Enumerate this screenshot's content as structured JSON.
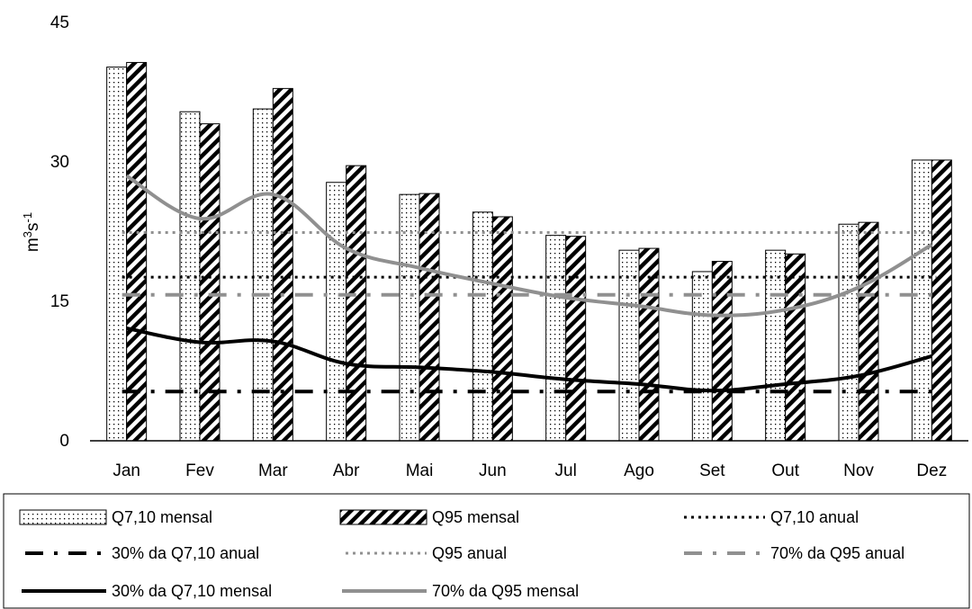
{
  "chart_data": {
    "type": "bar",
    "title": "",
    "xlabel": "",
    "ylabel": "m³s⁻¹",
    "ylabel_base": "m",
    "ylabel_sup1": "3",
    "ylabel_mid": "s",
    "ylabel_sup2": "-1",
    "ylim": [
      0,
      45
    ],
    "yticks": [
      0,
      15,
      30,
      45
    ],
    "ytick_labels": [
      "0",
      "15",
      "30",
      "45"
    ],
    "grid": false,
    "legend_position": "bottom",
    "categories": [
      "Jan",
      "Fev",
      "Mar",
      "Abr",
      "Mai",
      "Jun",
      "Jul",
      "Ago",
      "Set",
      "Out",
      "Nov",
      "Dez"
    ],
    "bar_series": [
      {
        "name": "Q7,10 mensal",
        "pattern": "dots",
        "values": [
          40.2,
          35.4,
          35.7,
          27.8,
          26.5,
          24.6,
          22.1,
          20.5,
          18.2,
          20.5,
          23.3,
          30.2
        ]
      },
      {
        "name": "Q95 mensal",
        "pattern": "diagonal",
        "values": [
          40.7,
          34.1,
          37.9,
          29.6,
          26.6,
          24.1,
          22.0,
          20.7,
          19.3,
          20.1,
          23.5,
          30.2
        ]
      }
    ],
    "line_series": [
      {
        "name": "30% da Q7,10 mensal",
        "color": "#000000",
        "values": [
          12.1,
          10.6,
          10.7,
          8.3,
          7.9,
          7.4,
          6.6,
          6.1,
          5.4,
          6.1,
          7.0,
          9.1
        ]
      },
      {
        "name": "70% da Q95 mensal",
        "color": "#909090",
        "values": [
          28.5,
          23.9,
          26.5,
          20.7,
          18.6,
          16.9,
          15.4,
          14.5,
          13.5,
          14.1,
          16.5,
          21.1
        ]
      }
    ],
    "hline_series": [
      {
        "name": "Q7,10 anual",
        "value": 17.6,
        "color": "#000000",
        "style": "dotted"
      },
      {
        "name": "30% da Q7,10 anual",
        "value": 5.3,
        "color": "#000000",
        "style": "dashdot"
      },
      {
        "name": "Q95 anual",
        "value": 22.4,
        "color": "#909090",
        "style": "dotted"
      },
      {
        "name": "70% da Q95 anual",
        "value": 15.7,
        "color": "#909090",
        "style": "dashdot"
      }
    ],
    "legend_order": [
      "Q7,10 mensal",
      "Q95 mensal",
      "Q7,10 anual",
      "30% da Q7,10 anual",
      "Q95 anual",
      "70% da Q95 anual",
      "30% da Q7,10 mensal",
      "70% da Q95 mensal"
    ]
  }
}
